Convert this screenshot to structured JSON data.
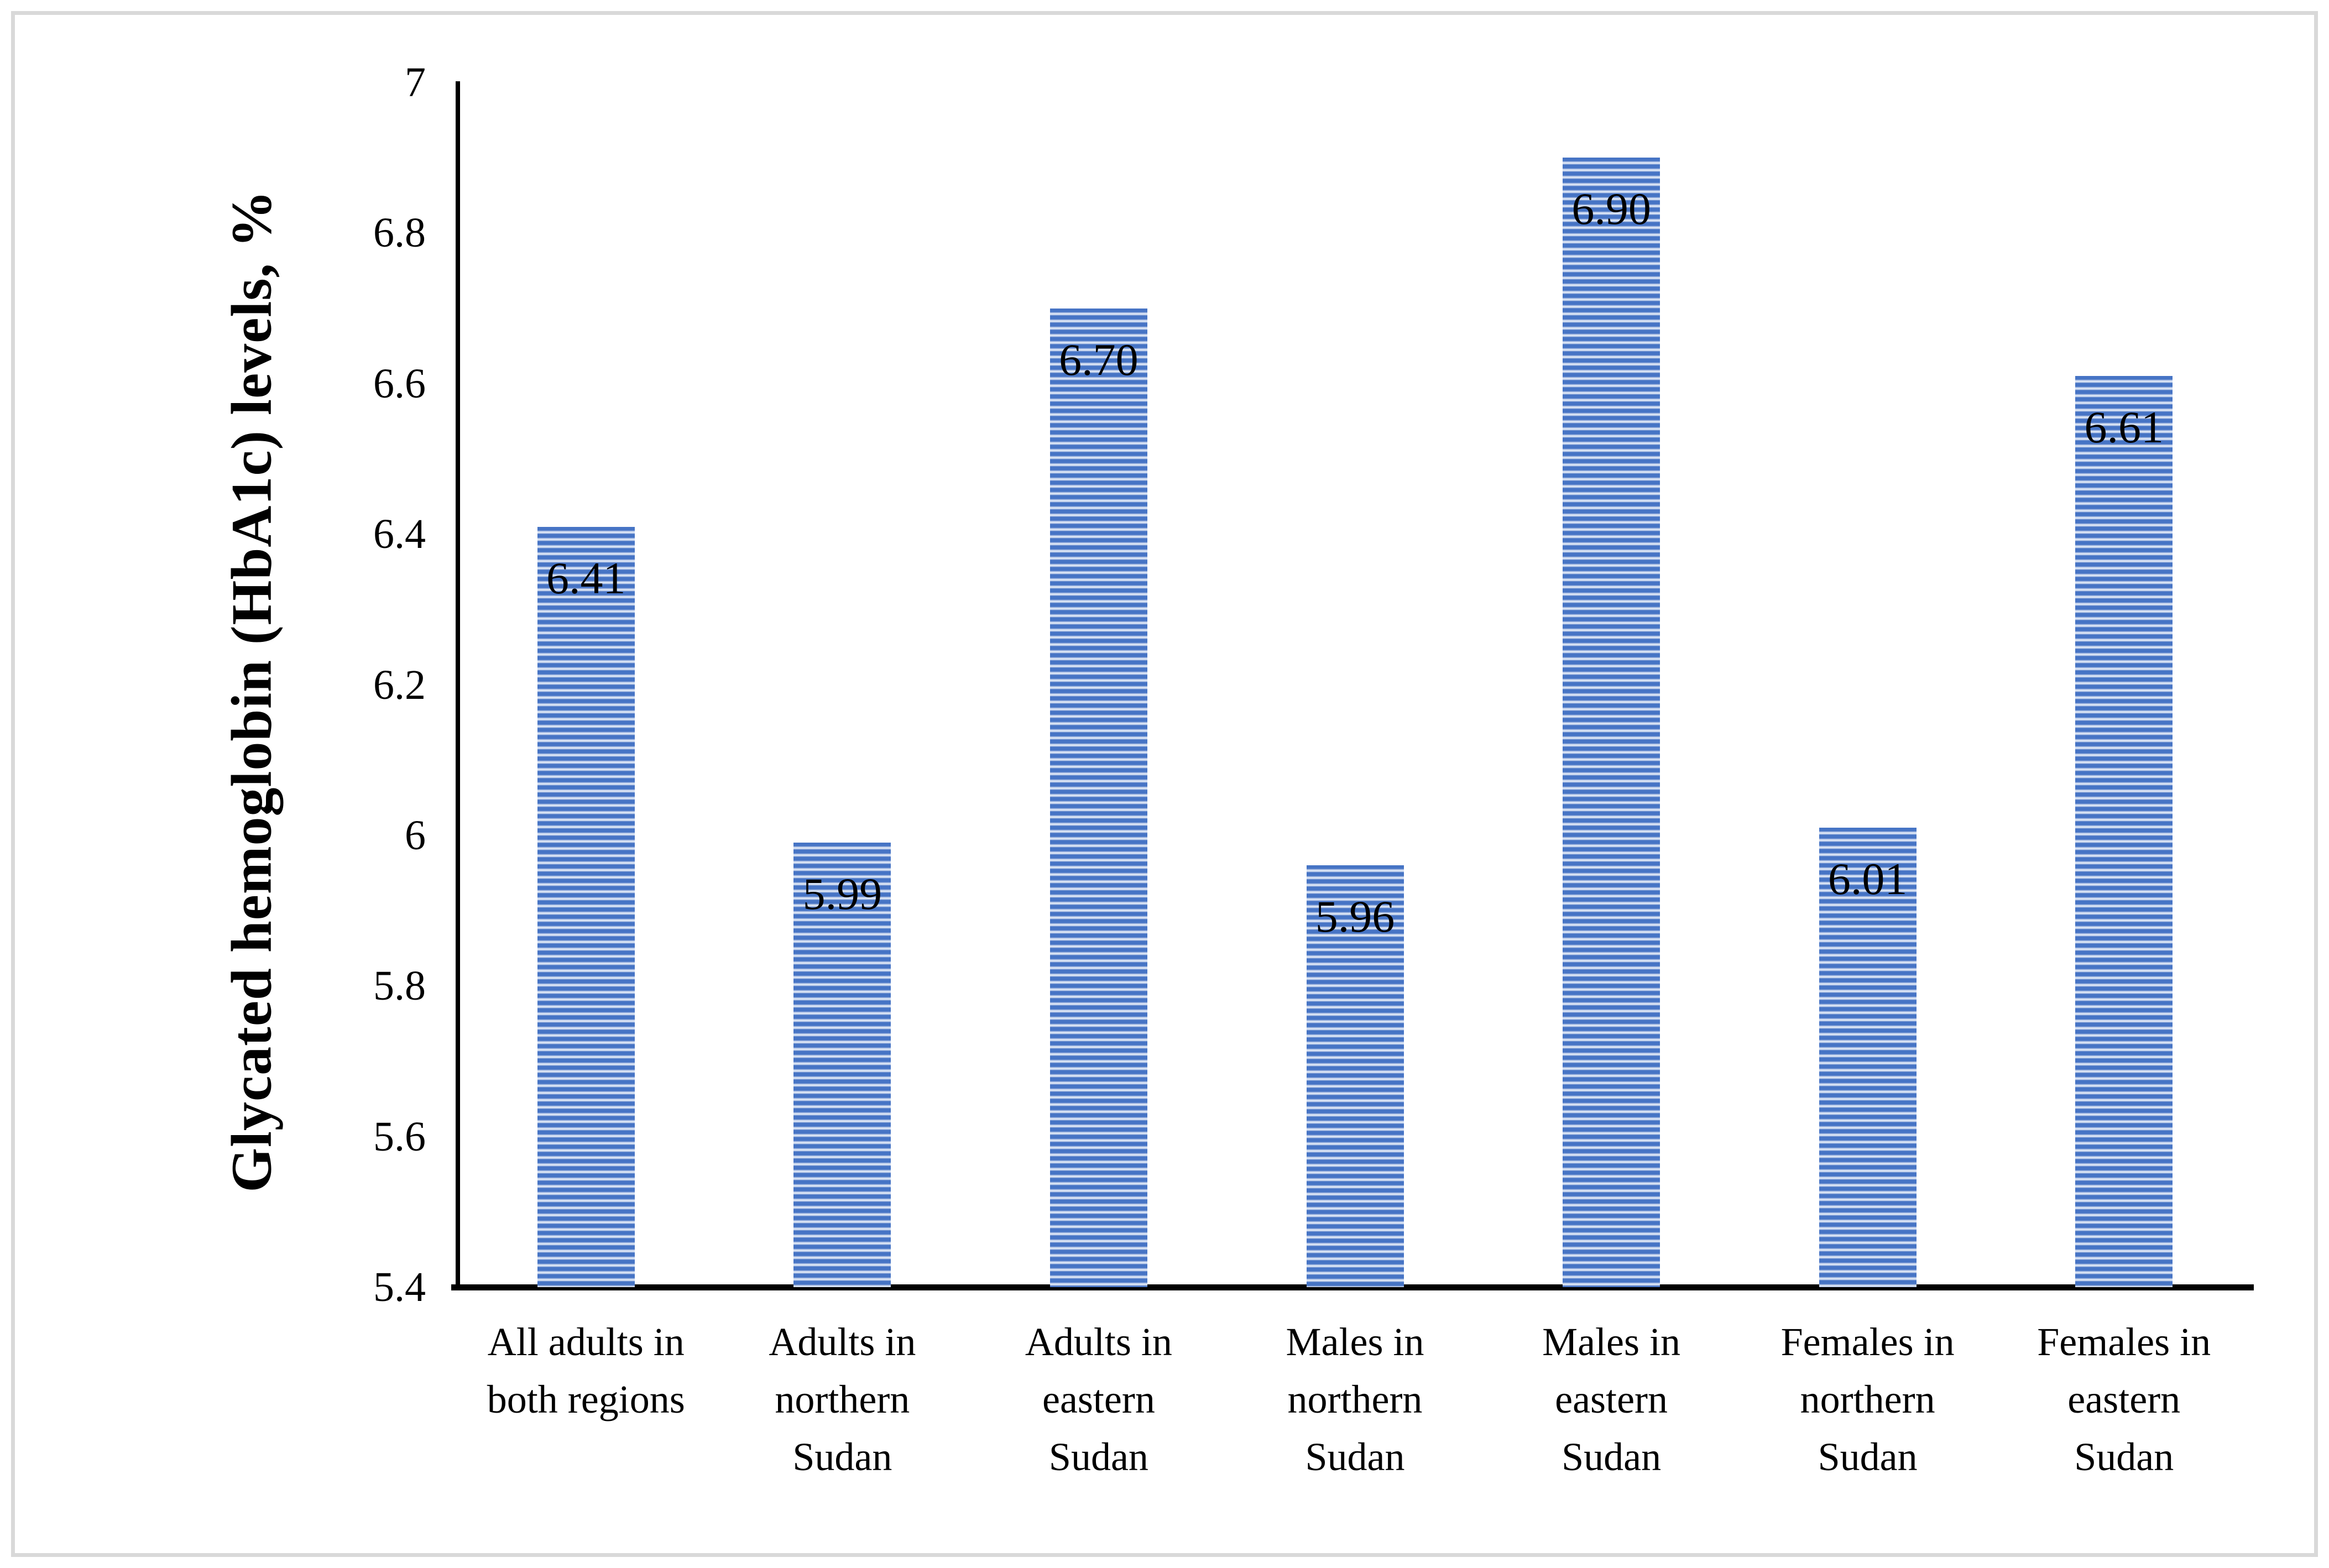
{
  "figure": {
    "background": "#ffffff",
    "border_color": "#d9d9d9"
  },
  "chart_data": {
    "type": "bar",
    "title": "",
    "xlabel": "",
    "ylabel": "Glycated hemoglobin (HbA1c) levels, %",
    "ylim": [
      5.4,
      7
    ],
    "ytick_step": 0.2,
    "grid": false,
    "legend": false,
    "axis_color": "#000000",
    "bar_stripe_dark": "#4674c5",
    "bar_stripe_light": "#dce6f6",
    "bar_label_color": "#000000",
    "yticks": [
      "7",
      "6.8",
      "6.6",
      "6.4",
      "6.2",
      "6",
      "5.8",
      "5.6",
      "5.4"
    ],
    "ytick_values": [
      7,
      6.8,
      6.6,
      6.4,
      6.2,
      6,
      5.8,
      5.6,
      5.4
    ],
    "categories": [
      "All adults in both regions",
      "Adults in northern Sudan",
      "Adults in eastern Sudan",
      "Males in northern Sudan",
      "Males in eastern Sudan",
      "Females in northern Sudan",
      "Females in eastern Sudan"
    ],
    "category_lines": [
      [
        "All adults in",
        "both regions"
      ],
      [
        "Adults in",
        "northern",
        "Sudan"
      ],
      [
        "Adults in",
        "eastern",
        "Sudan"
      ],
      [
        "Males in",
        "northern",
        "Sudan"
      ],
      [
        "Males in",
        "eastern",
        "Sudan"
      ],
      [
        "Females in",
        "northern",
        "Sudan"
      ],
      [
        "Females in",
        "eastern",
        "Sudan"
      ]
    ],
    "values": [
      6.41,
      5.99,
      6.7,
      5.96,
      6.9,
      6.01,
      6.61
    ],
    "value_labels": [
      "6.41",
      "5.99",
      "6.70",
      "5.96",
      "6.90",
      "6.01",
      "6.61"
    ]
  }
}
